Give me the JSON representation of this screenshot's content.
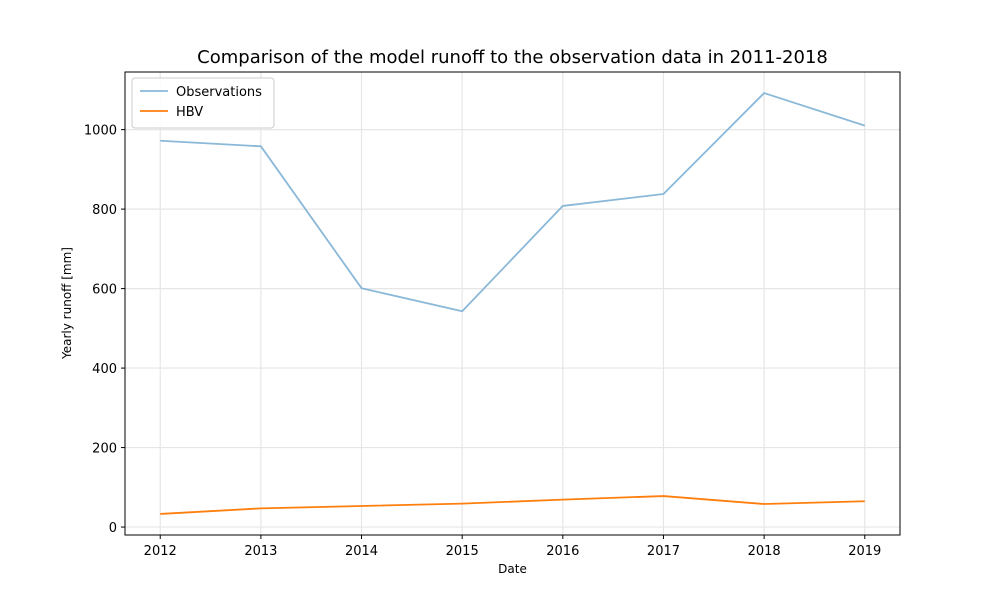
{
  "chart_data": {
    "type": "line",
    "title": "Comparison of the model runoff to the observation data in 2011-2018",
    "xlabel": "Date",
    "ylabel": "Yearly runoff [mm]",
    "x": [
      "2012",
      "2013",
      "2014",
      "2015",
      "2016",
      "2017",
      "2018",
      "2019"
    ],
    "xlim": [
      2011.65,
      2019.35
    ],
    "ylim": [
      -20,
      1145
    ],
    "yticks": [
      0,
      200,
      400,
      600,
      800,
      1000
    ],
    "grid": true,
    "legend_position": "top-left",
    "series": [
      {
        "name": "Observations",
        "color": "#8ab8d8",
        "values": [
          972,
          958,
          601,
          543,
          808,
          838,
          1092,
          1010
        ]
      },
      {
        "name": "HBV",
        "color": "#ff7f0e",
        "values": [
          33,
          47,
          53,
          59,
          69,
          78,
          58,
          65
        ]
      }
    ]
  }
}
